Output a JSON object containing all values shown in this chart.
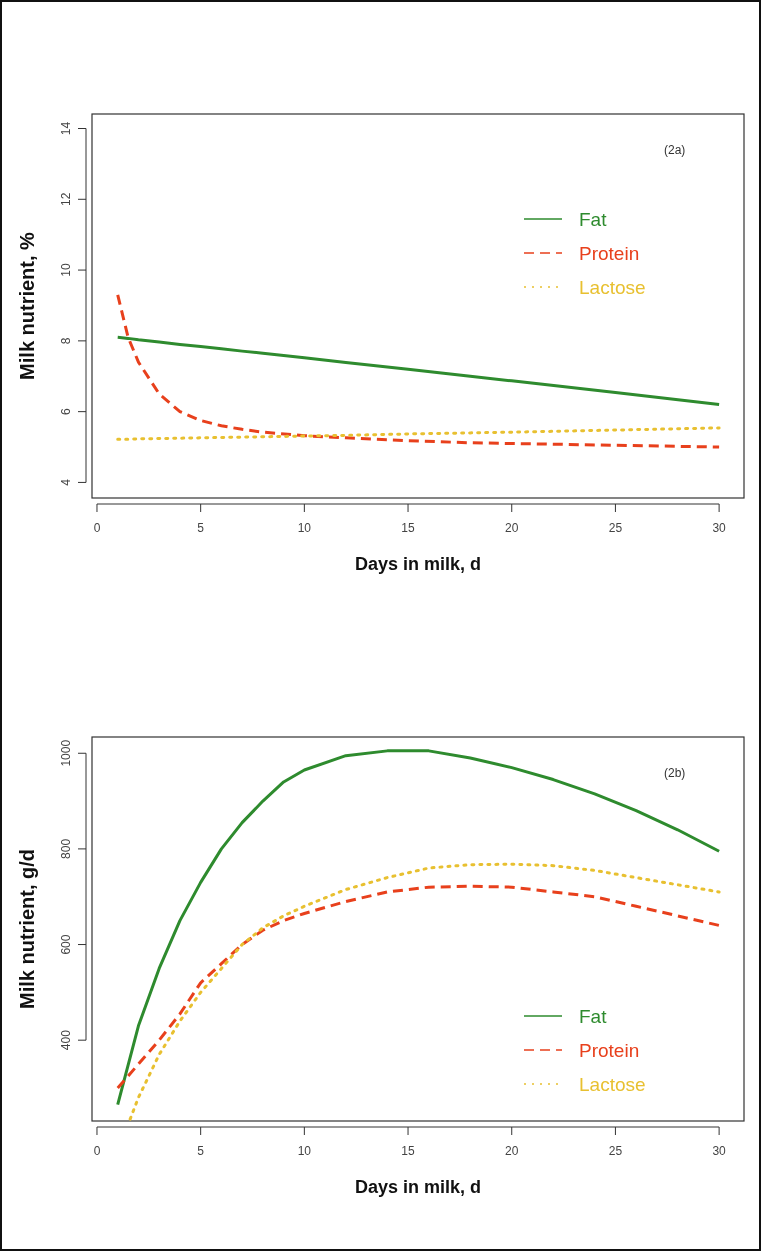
{
  "chart_data": [
    {
      "type": "line",
      "xlabel": "Days in milk, d",
      "ylabel": "Milk nutrient, %",
      "annotations": [
        "(2a)"
      ],
      "xlim": [
        -0.24,
        31.2
      ],
      "ylim": [
        3.56,
        14.41
      ],
      "xticks": [
        0,
        5,
        10,
        15,
        20,
        25,
        30
      ],
      "yticks": [
        4,
        6,
        8,
        10,
        12,
        14
      ],
      "legend": "top right",
      "grid": false,
      "x": [
        1,
        1.5,
        2,
        3,
        4,
        5,
        6,
        7,
        8,
        10,
        12,
        15,
        18,
        20,
        25,
        30
      ],
      "series": [
        {
          "name": "Fat",
          "color": "#2e8b2e",
          "line_style": "solid",
          "values": [
            8.1,
            8.07,
            8.03,
            7.97,
            7.9,
            7.84,
            7.78,
            7.71,
            7.65,
            7.52,
            7.39,
            7.2,
            7.0,
            6.87,
            6.54,
            6.2
          ]
        },
        {
          "name": "Protein",
          "color": "#e8401c",
          "line_style": "dashed",
          "values": [
            9.3,
            8.1,
            7.4,
            6.5,
            6.0,
            5.75,
            5.6,
            5.5,
            5.42,
            5.32,
            5.26,
            5.18,
            5.12,
            5.1,
            5.05,
            5.0
          ]
        },
        {
          "name": "Lactose",
          "color": "#e8c030",
          "line_style": "dotted",
          "values": [
            5.22,
            5.22,
            5.23,
            5.24,
            5.25,
            5.26,
            5.27,
            5.28,
            5.29,
            5.31,
            5.33,
            5.37,
            5.4,
            5.42,
            5.48,
            5.54
          ]
        }
      ]
    },
    {
      "type": "line",
      "xlabel": "Days in milk, d",
      "ylabel": "Milk nutrient, g/d",
      "annotations": [
        "(2b)"
      ],
      "xlim": [
        -0.24,
        31.2
      ],
      "ylim": [
        231,
        1034
      ],
      "xticks": [
        0,
        5,
        10,
        15,
        20,
        25,
        30
      ],
      "yticks": [
        400,
        600,
        800,
        1000
      ],
      "legend": "bottom right",
      "grid": false,
      "series": [
        {
          "name": "Fat",
          "color": "#2e8b2e",
          "line_style": "solid",
          "x": [
            1,
            2,
            3,
            4,
            5,
            6,
            7,
            8,
            9,
            10,
            12,
            14,
            16,
            18,
            20,
            22,
            24,
            26,
            28,
            30
          ],
          "values": [
            265,
            430,
            550,
            650,
            730,
            800,
            855,
            900,
            940,
            965,
            995,
            1005,
            1005,
            990,
            970,
            945,
            915,
            880,
            840,
            795
          ]
        },
        {
          "name": "Protein",
          "color": "#e8401c",
          "line_style": "dashed",
          "x": [
            1,
            2,
            3,
            4,
            5,
            6,
            7,
            8,
            9,
            10,
            12,
            14,
            16,
            18,
            20,
            22,
            24,
            26,
            28,
            30
          ],
          "values": [
            300,
            350,
            400,
            455,
            520,
            560,
            600,
            630,
            650,
            665,
            690,
            710,
            720,
            722,
            720,
            710,
            700,
            680,
            660,
            640
          ]
        },
        {
          "name": "Lactose",
          "color": "#e8c030",
          "line_style": "dotted",
          "x": [
            1.6,
            2,
            3,
            4,
            5,
            6,
            7,
            8,
            9,
            10,
            12,
            14,
            16,
            18,
            20,
            22,
            24,
            26,
            28,
            30
          ],
          "values": [
            235,
            280,
            370,
            440,
            500,
            550,
            600,
            635,
            660,
            680,
            715,
            740,
            760,
            767,
            768,
            765,
            755,
            740,
            725,
            710
          ]
        }
      ]
    }
  ]
}
